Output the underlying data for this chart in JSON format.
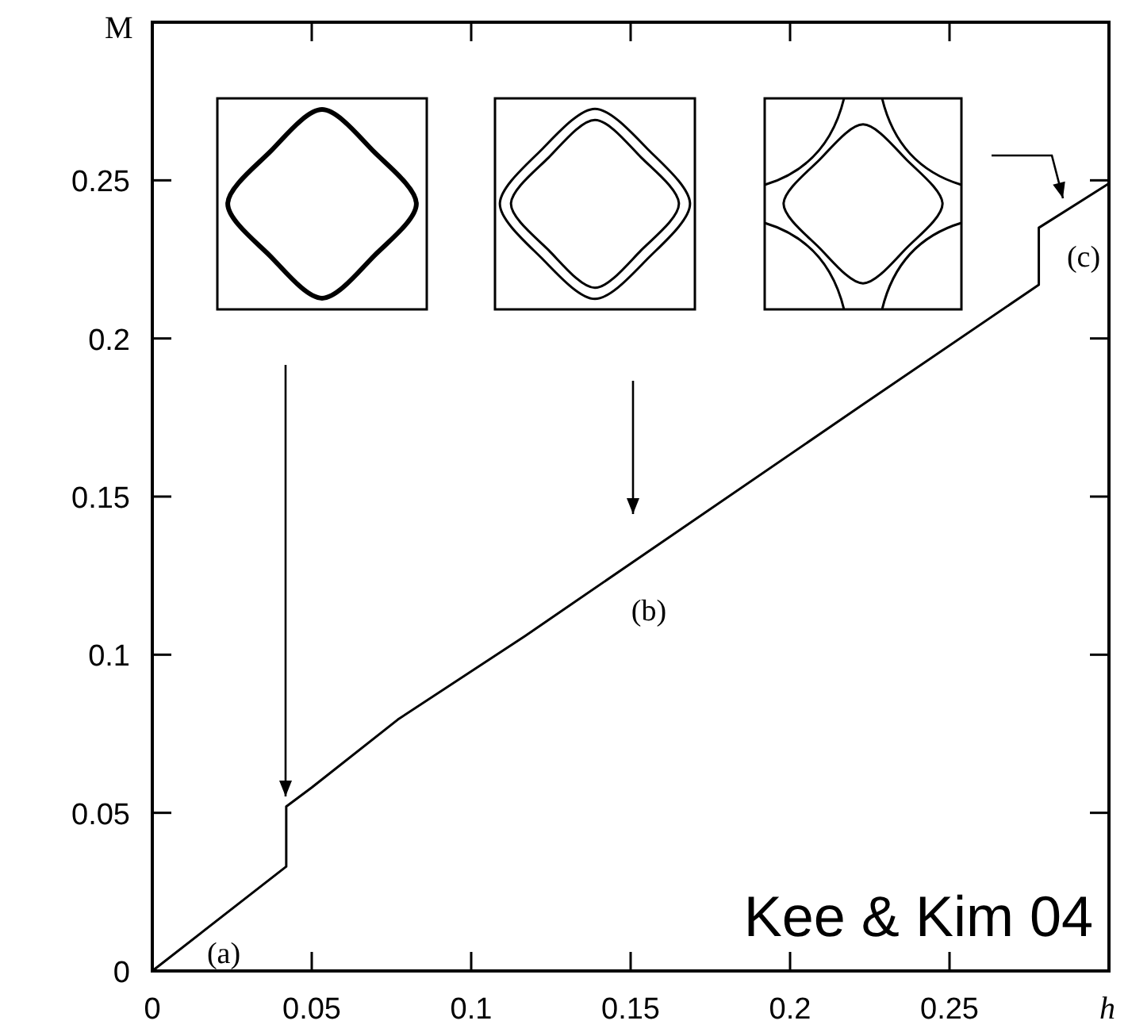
{
  "chart_data": {
    "type": "line",
    "xlabel": "h",
    "ylabel": "M",
    "x": [
      0,
      0.042,
      0.042,
      0.05,
      0.077,
      0.117,
      0.227,
      0.278,
      0.278,
      0.3
    ],
    "series": [
      {
        "color": "#000000",
        "values": [
          0,
          0.033,
          0.052,
          0.058,
          0.0795,
          0.106,
          0.182,
          0.217,
          0.235,
          0.249
        ]
      }
    ],
    "xlim": [
      0,
      0.3
    ],
    "ylim": [
      0,
      0.3
    ],
    "xticks": [
      0,
      0.05,
      0.1,
      0.15,
      0.2,
      0.25
    ],
    "yticks": [
      0,
      0.05,
      0.1,
      0.15,
      0.2,
      0.25
    ],
    "grid": false,
    "marker": "none",
    "line_style": "solid",
    "annotations": [
      "(a)",
      "(b)",
      "(c)",
      "Kee & Kim 04"
    ]
  }
}
